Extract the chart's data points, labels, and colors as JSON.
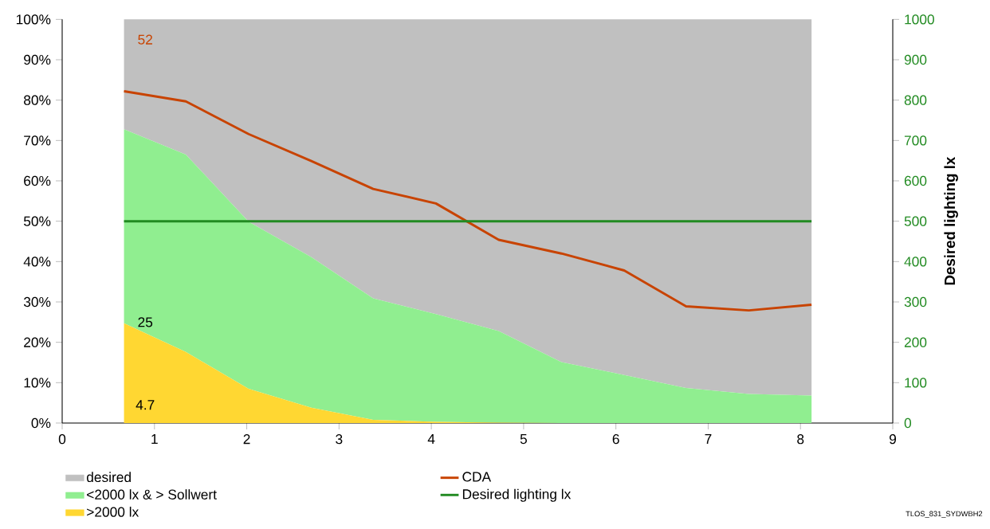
{
  "chart_data": {
    "type": "area",
    "stacked": true,
    "x": [
      0.67,
      1.34,
      2.02,
      2.7,
      3.37,
      4.05,
      4.73,
      5.41,
      6.09,
      6.76,
      7.44,
      8.12
    ],
    "series": [
      {
        "name": ">2000 lx",
        "color": "#ffd732",
        "values": [
          24.7,
          17.6,
          8.5,
          3.8,
          0.8,
          0.3,
          0.1,
          0,
          0,
          0,
          0,
          0
        ]
      },
      {
        "name": "<2000 lx & > Sollwert",
        "color": "#90ee90",
        "values": [
          48.1,
          48.9,
          41.4,
          37.3,
          30.1,
          26.7,
          22.7,
          15.1,
          11.9,
          8.7,
          7.2,
          6.8
        ]
      },
      {
        "name": "desired",
        "color": "#c0c0c0",
        "values": [
          27.2,
          33.5,
          50.1,
          58.9,
          69.1,
          73.0,
          77.2,
          84.9,
          88.1,
          91.3,
          92.8,
          93.2
        ]
      },
      {
        "name": "CDA",
        "type": "line",
        "color": "#c84300",
        "values": [
          82.2,
          79.7,
          71.6,
          64.9,
          58.0,
          54.4,
          45.4,
          42.0,
          37.8,
          28.9,
          27.9,
          29.3
        ]
      },
      {
        "name": "Desired lighting lx",
        "type": "line",
        "axis": "y2",
        "color": "#228b22",
        "values": [
          500,
          500,
          500,
          500,
          500,
          500,
          500,
          500,
          500,
          500,
          500,
          500
        ]
      }
    ],
    "xlim": [
      0,
      9
    ],
    "xticks": [
      0,
      1,
      2,
      3,
      4,
      5,
      6,
      7,
      8,
      9
    ],
    "ylim": [
      0,
      100
    ],
    "yticks": [
      {
        "value": 0,
        "label": "0%"
      },
      {
        "value": 10,
        "label": "10%"
      },
      {
        "value": 20,
        "label": "20%"
      },
      {
        "value": 30,
        "label": "30%"
      },
      {
        "value": 40,
        "label": "40%"
      },
      {
        "value": 50,
        "label": "50%"
      },
      {
        "value": 60,
        "label": "60%"
      },
      {
        "value": 70,
        "label": "70%"
      },
      {
        "value": 80,
        "label": "80%"
      },
      {
        "value": 90,
        "label": "90%"
      },
      {
        "value": 100,
        "label": "100%"
      }
    ],
    "y2lim": [
      0,
      1000
    ],
    "y2ticks": [
      0,
      100,
      200,
      300,
      400,
      500,
      600,
      700,
      800,
      900,
      1000
    ],
    "y2label": "Desired lighting lx",
    "legend": "bottom",
    "annotations": [
      "52",
      "25",
      "4.7",
      "TLOS_831_SYDWBH2"
    ]
  }
}
